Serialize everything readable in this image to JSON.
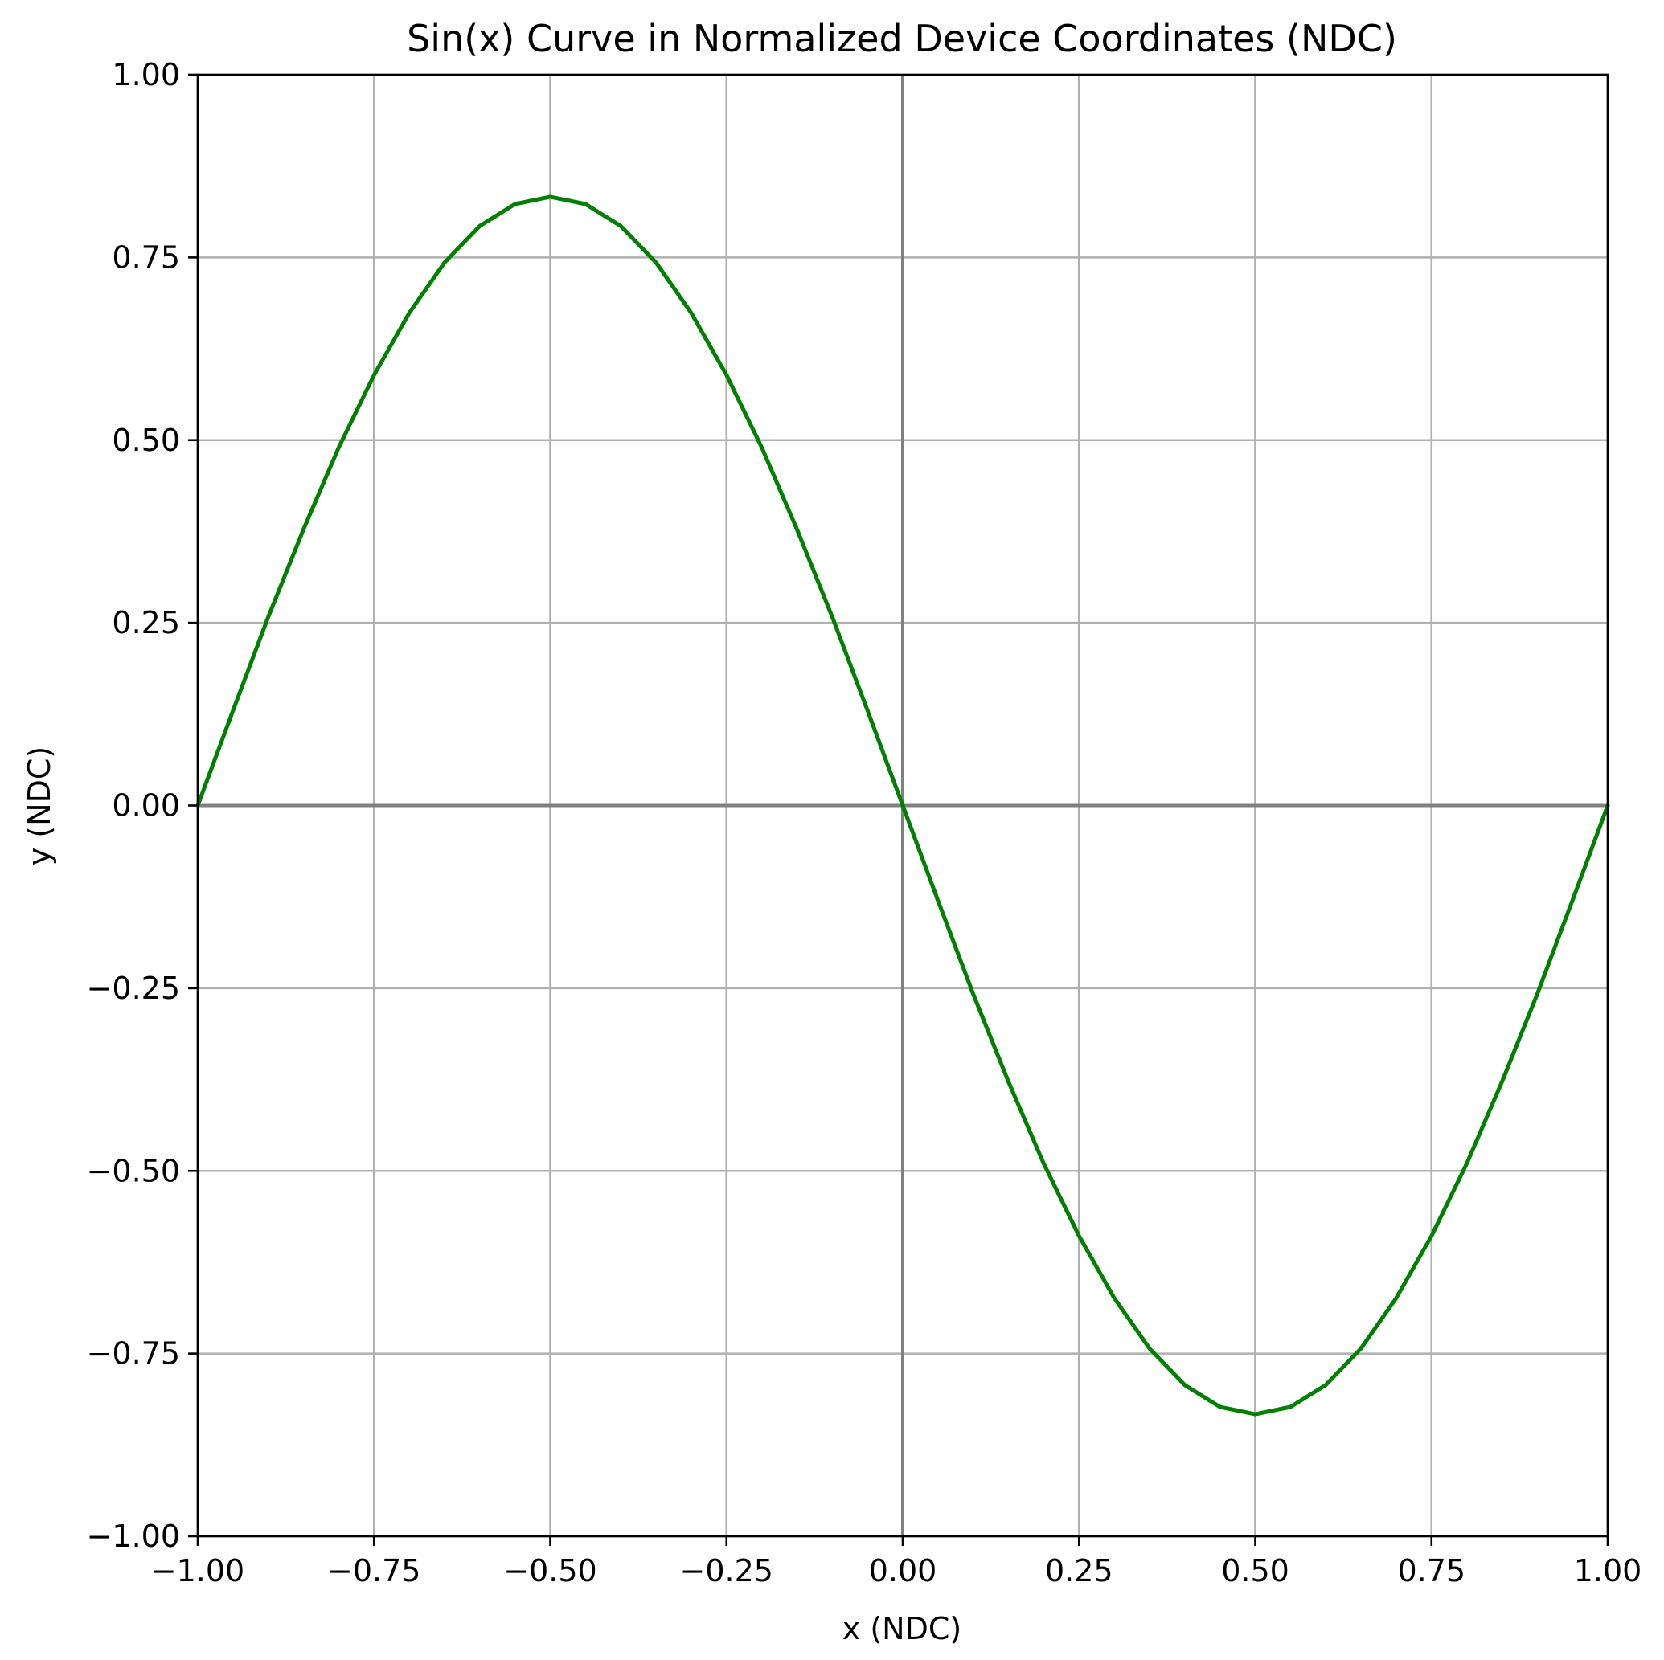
{
  "chart_data": {
    "type": "line",
    "title": "Sin(x) Curve in Normalized Device Coordinates (NDC)",
    "xlabel": "x (NDC)",
    "ylabel": "y (NDC)",
    "xlim": [
      -1.0,
      1.0
    ],
    "ylim": [
      -1.0,
      1.0
    ],
    "x_ticks": [
      -1.0,
      -0.75,
      -0.5,
      -0.25,
      0.0,
      0.25,
      0.5,
      0.75,
      1.0
    ],
    "x_tick_labels": [
      "−1.00",
      "−0.75",
      "−0.50",
      "−0.25",
      "0.00",
      "0.25",
      "0.50",
      "0.75",
      "1.00"
    ],
    "y_ticks": [
      1.0,
      0.75,
      0.5,
      0.25,
      0.0,
      -0.25,
      -0.5,
      -0.75,
      -1.0
    ],
    "y_tick_labels": [
      "1.00",
      "0.75",
      "0.50",
      "0.25",
      "0.00",
      "−0.25",
      "−0.50",
      "−0.75",
      "−1.00"
    ],
    "grid": true,
    "zero_lines": true,
    "series": [
      {
        "color": "#008000",
        "x": [
          -1.0,
          -0.95,
          -0.9,
          -0.85,
          -0.8,
          -0.75,
          -0.7,
          -0.65,
          -0.6,
          -0.55,
          -0.5,
          -0.45,
          -0.4,
          -0.35,
          -0.3,
          -0.25,
          -0.2,
          -0.15,
          -0.1,
          -0.05,
          0.0,
          0.05,
          0.1,
          0.15,
          0.2,
          0.25,
          0.3,
          0.35,
          0.4,
          0.45,
          0.5,
          0.55,
          0.6,
          0.65,
          0.7,
          0.75,
          0.8,
          0.85,
          0.9,
          0.95,
          1.0
        ],
        "y": [
          0.0,
          0.13,
          0.258,
          0.378,
          0.49,
          0.589,
          0.674,
          0.743,
          0.793,
          0.823,
          0.833,
          0.823,
          0.793,
          0.743,
          0.674,
          0.589,
          0.49,
          0.378,
          0.258,
          0.13,
          0.0,
          -0.13,
          -0.258,
          -0.378,
          -0.49,
          -0.589,
          -0.674,
          -0.743,
          -0.793,
          -0.823,
          -0.833,
          -0.823,
          -0.793,
          -0.743,
          -0.674,
          -0.589,
          -0.49,
          -0.378,
          -0.258,
          -0.13,
          0.0
        ]
      }
    ]
  }
}
